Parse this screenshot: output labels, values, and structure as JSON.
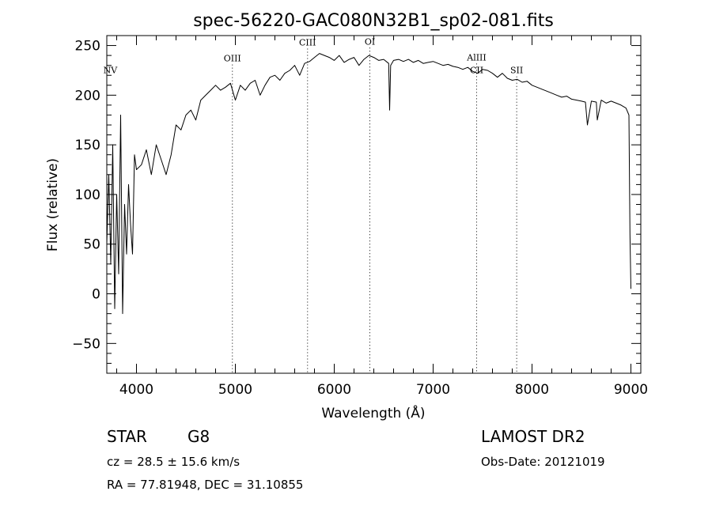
{
  "chart_data": {
    "type": "line",
    "title": "spec-56220-GAC080N32B1_sp02-081.fits",
    "xlabel": "Wavelength (Å)",
    "ylabel": "Flux (relative)",
    "xlim": [
      3700,
      9100
    ],
    "ylim": [
      -80,
      260
    ],
    "xticks": [
      "4000",
      "5000",
      "6000",
      "7000",
      "8000",
      "9000"
    ],
    "yticks": [
      "−50",
      "0",
      "50",
      "100",
      "150",
      "200",
      "250"
    ],
    "grid": false,
    "series": [
      {
        "x": [
          3700,
          3720,
          3740,
          3760,
          3780,
          3800,
          3820,
          3840,
          3860,
          3880,
          3900,
          3920,
          3940,
          3960,
          3980,
          4000,
          4050,
          4100,
          4150,
          4200,
          4250,
          4300,
          4350,
          4400,
          4450,
          4500,
          4550,
          4600,
          4650,
          4700,
          4750,
          4800,
          4850,
          4900,
          4950,
          5000,
          5050,
          5100,
          5150,
          5200,
          5250,
          5300,
          5350,
          5400,
          5450,
          5500,
          5550,
          5600,
          5650,
          5700,
          5750,
          5800,
          5850,
          5900,
          5950,
          6000,
          6050,
          6100,
          6150,
          6200,
          6250,
          6300,
          6350,
          6400,
          6450,
          6500,
          6550,
          6560,
          6570,
          6600,
          6650,
          6700,
          6750,
          6800,
          6850,
          6900,
          6950,
          7000,
          7050,
          7100,
          7150,
          7200,
          7250,
          7300,
          7350,
          7400,
          7450,
          7500,
          7550,
          7600,
          7650,
          7700,
          7750,
          7800,
          7850,
          7900,
          7950,
          8000,
          8050,
          8100,
          8150,
          8200,
          8250,
          8300,
          8350,
          8400,
          8450,
          8500,
          8540,
          8560,
          8600,
          8650,
          8660,
          8700,
          8750,
          8800,
          8850,
          8900,
          8950,
          8980,
          8990,
          9000
        ],
        "y": [
          50,
          120,
          30,
          150,
          -15,
          100,
          20,
          180,
          -20,
          90,
          40,
          110,
          70,
          40,
          140,
          125,
          130,
          145,
          120,
          150,
          135,
          120,
          140,
          170,
          165,
          180,
          185,
          175,
          195,
          200,
          205,
          210,
          205,
          208,
          212,
          195,
          210,
          205,
          212,
          215,
          200,
          210,
          218,
          220,
          215,
          222,
          225,
          230,
          220,
          232,
          234,
          238,
          242,
          240,
          238,
          235,
          240,
          233,
          236,
          238,
          230,
          236,
          240,
          238,
          235,
          236,
          232,
          185,
          230,
          235,
          236,
          234,
          236,
          233,
          235,
          232,
          233,
          234,
          232,
          230,
          231,
          229,
          228,
          226,
          228,
          224,
          222,
          226,
          225,
          222,
          218,
          222,
          217,
          215,
          216,
          213,
          214,
          210,
          208,
          206,
          204,
          202,
          200,
          198,
          199,
          196,
          195,
          194,
          193,
          170,
          194,
          193,
          175,
          195,
          192,
          194,
          192,
          190,
          187,
          180,
          60,
          5
        ]
      }
    ],
    "line_labels": [
      {
        "name": "NV",
        "x": 3735,
        "y": 222,
        "dotted": false
      },
      {
        "name": "OIII",
        "x": 4970,
        "y": 234,
        "dotted": true
      },
      {
        "name": "CIII",
        "x": 5730,
        "y": 250,
        "dotted": true
      },
      {
        "name": "OI",
        "x": 6360,
        "y": 251,
        "dotted": true
      },
      {
        "name": "AlIII",
        "x": 7440,
        "y": 235,
        "dotted": true
      },
      {
        "name": "CII",
        "x": 7440,
        "y": 222,
        "dotted": false
      },
      {
        "name": "SII",
        "x": 7845,
        "y": 222,
        "dotted": true
      }
    ]
  },
  "info": {
    "class": "STAR",
    "subclass": "G8",
    "survey": "LAMOST DR2",
    "cz": "cz = 28.5 ± 15.6 km/s",
    "obs_date": "Obs-Date: 20121019",
    "radec": "RA =  77.81948, DEC =  31.10855"
  }
}
